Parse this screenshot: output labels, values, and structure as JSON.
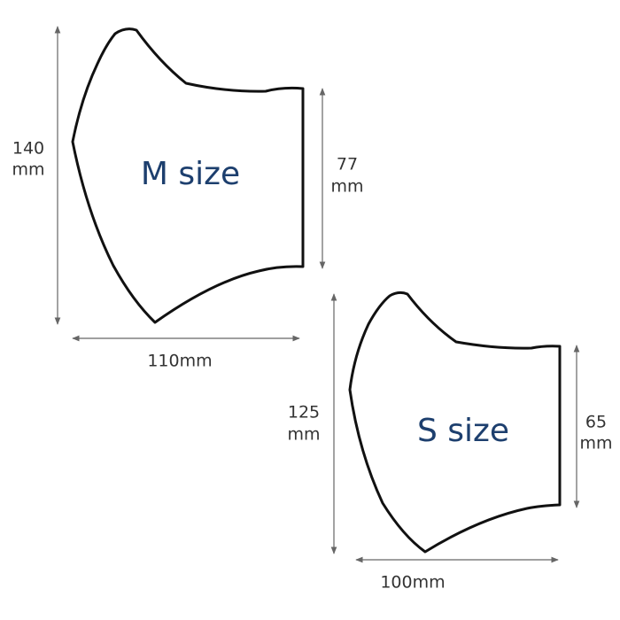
{
  "sizes": [
    {
      "label": "M size",
      "height": [
        "140",
        "mm"
      ],
      "side": [
        "77",
        "mm"
      ],
      "width": "110mm"
    },
    {
      "label": "S size",
      "height": [
        "125",
        "mm"
      ],
      "side": [
        "65",
        "mm"
      ],
      "width": "100mm"
    }
  ]
}
